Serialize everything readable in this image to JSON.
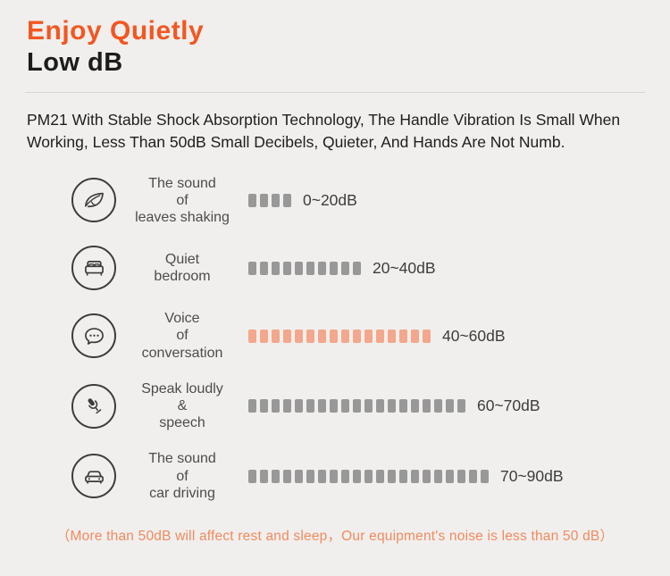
{
  "header": {
    "title": "Enjoy Quietly",
    "subtitle": "Low dB"
  },
  "description": "PM21 With Stable Shock Absorption Technology, The Handle Vibration Is Small When Working, Less Than 50dB Small Decibels, Quieter, And Hands Are Not Numb.",
  "colors": {
    "accent_orange": "#f25722",
    "footer_orange": "#f18a5f",
    "bar_gray": "#989898",
    "bar_highlight": "#f3a78c",
    "background": "#f0efed"
  },
  "rows": [
    {
      "icon": "leaf-icon",
      "label_lines": [
        "The sound",
        "of",
        "leaves shaking"
      ],
      "bar_count": 4,
      "bar_color": "#989898",
      "range": "0~20dB"
    },
    {
      "icon": "bed-icon",
      "label_lines": [
        "Quiet",
        "bedroom"
      ],
      "bar_count": 10,
      "bar_color": "#989898",
      "range": "20~40dB"
    },
    {
      "icon": "chat-bubble-icon",
      "label_lines": [
        "Voice",
        "of",
        "conversation"
      ],
      "bar_count": 16,
      "bar_color": "#f3a78c",
      "range": "40~60dB"
    },
    {
      "icon": "microphone-icon",
      "label_lines": [
        "Speak loudly",
        "&",
        "speech"
      ],
      "bar_count": 19,
      "bar_color": "#989898",
      "range": "60~70dB"
    },
    {
      "icon": "car-icon",
      "label_lines": [
        "The sound",
        "of",
        "car driving"
      ],
      "bar_count": 21,
      "bar_color": "#989898",
      "range": "70~90dB"
    }
  ],
  "footer": {
    "note": "（More than 50dB will affect rest and sleep，Our equipment's noise is less than 50 dB）"
  }
}
